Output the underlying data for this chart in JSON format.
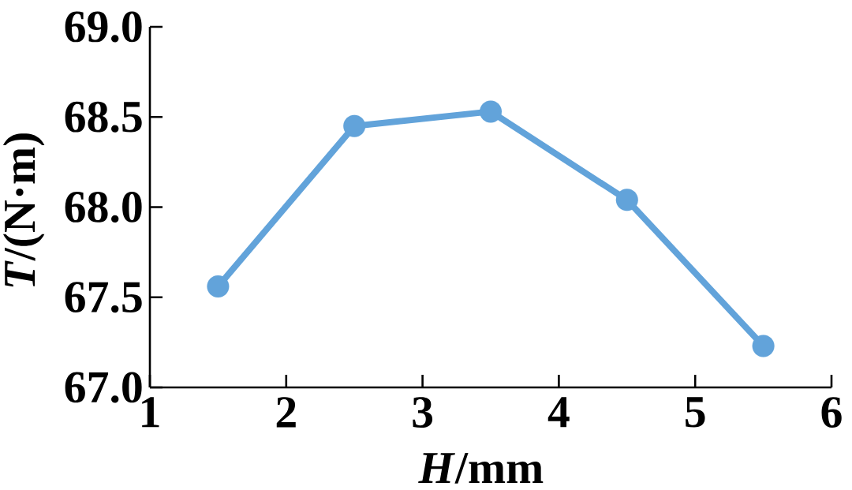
{
  "chart_data": {
    "type": "line",
    "xlabel": "*H*/mm",
    "ylabel": "*T*/(N·m)",
    "x": [
      1.5,
      2.5,
      3.5,
      4.5,
      5.5
    ],
    "series": [
      {
        "color": "#62a3da",
        "values": [
          67.56,
          68.45,
          68.53,
          68.04,
          67.23
        ]
      }
    ],
    "xlim": [
      1,
      6
    ],
    "xticks": [
      1,
      2,
      3,
      4,
      5,
      6
    ],
    "ylim": [
      67,
      69
    ],
    "yticks": [
      {
        "value": 67,
        "label": "67.0"
      },
      {
        "value": 67.5,
        "label": "67.5"
      },
      {
        "value": 68,
        "label": "68.0"
      },
      {
        "value": 68.5,
        "label": "68.5"
      },
      {
        "value": 69,
        "label": "69.0"
      }
    ],
    "marker": "circle",
    "line_style": "solid"
  }
}
